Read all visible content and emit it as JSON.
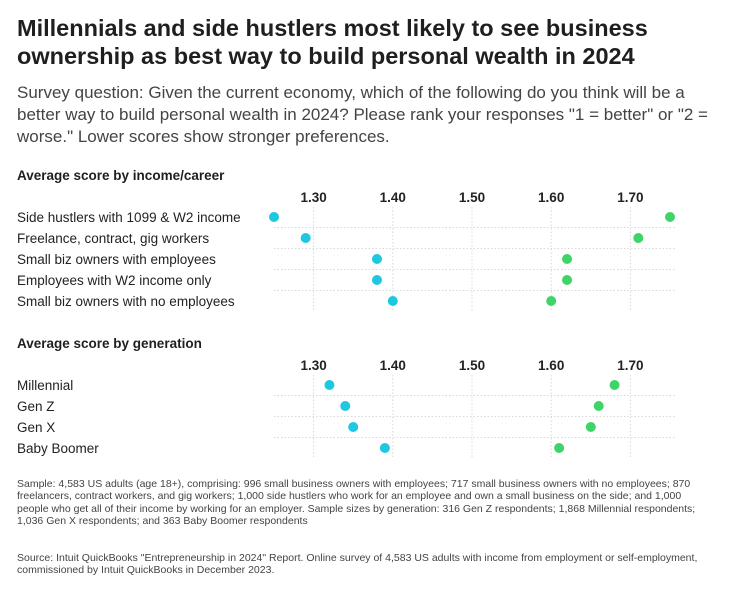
{
  "title": "Millennials and side hustlers most likely to see business ownership as best way to build personal wealth in 2024",
  "subtitle": "Survey question: Given the current economy, which of the following do you think will be a better way to build personal wealth in 2024? Please rank your responses \"1 = better\" or \"2 = worse.\" Lower scores show stronger preferences.",
  "colors": {
    "series_a": "#1ec8e0",
    "series_b": "#3fd468",
    "grid": "#d9d9d9",
    "text": "#222222"
  },
  "chart_data": [
    {
      "type": "scatter",
      "title": "Average score by income/career",
      "xlim": [
        1.25,
        1.75
      ],
      "xticks": [
        "1.30",
        "1.40",
        "1.50",
        "1.60",
        "1.70"
      ],
      "grid": true,
      "categories": [
        "Side hustlers with 1099 & W2 income",
        "Freelance, contract, gig workers",
        "Small biz owners with employees",
        "Employees with W2 income only",
        "Small biz owners with no employees"
      ],
      "series": [
        {
          "color": "#1ec8e0",
          "values": [
            1.25,
            1.29,
            1.38,
            1.38,
            1.4
          ]
        },
        {
          "color": "#3fd468",
          "values": [
            1.75,
            1.71,
            1.62,
            1.62,
            1.6
          ]
        }
      ]
    },
    {
      "type": "scatter",
      "title": "Average score by generation",
      "xlim": [
        1.25,
        1.75
      ],
      "xticks": [
        "1.30",
        "1.40",
        "1.50",
        "1.60",
        "1.70"
      ],
      "grid": true,
      "categories": [
        "Millennial",
        "Gen Z",
        "Gen X",
        "Baby Boomer"
      ],
      "series": [
        {
          "color": "#1ec8e0",
          "values": [
            1.32,
            1.34,
            1.35,
            1.39
          ]
        },
        {
          "color": "#3fd468",
          "values": [
            1.68,
            1.66,
            1.65,
            1.61
          ]
        }
      ]
    }
  ],
  "footnotes": {
    "sample": "Sample: 4,583 US adults (age 18+), comprising: 996 small business owners with employees; 717 small business owners with no employees; 870 freelancers, contract workers, and gig workers; 1,000 side hustlers who work for an employee and own a small business on the side; and 1,000 people who get all of their income by working for an employer. Sample sizes by generation: 316 Gen Z respondents; 1,868 Millennial respondents; 1,036 Gen X respondents; and 363 Baby Boomer respondents",
    "source": "Source: Intuit QuickBooks \"Entrepreneurship in 2024\" Report. Online survey of 4,583 US adults with income from employment or self-employment, commissioned by Intuit QuickBooks in December 2023."
  }
}
